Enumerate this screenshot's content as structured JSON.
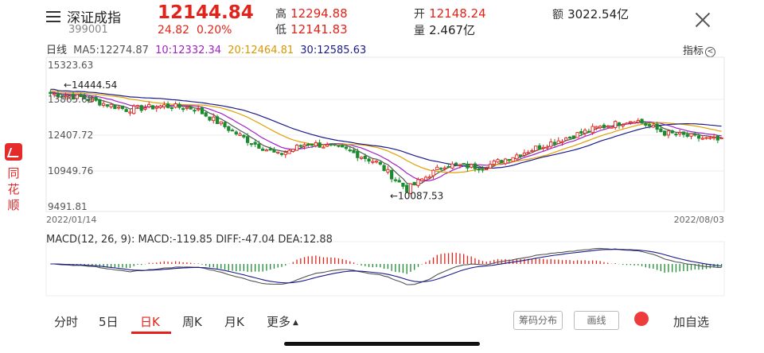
{
  "brand": {
    "logo_icon": "ths-logo-icon",
    "chars": [
      "同",
      "花",
      "顺"
    ]
  },
  "header": {
    "name": "深证成指",
    "code": "399001",
    "price": "12144.84",
    "change": "24.82",
    "change_pct": "0.20%",
    "high_label": "高",
    "high": "12294.88",
    "low_label": "低",
    "low": "12141.83",
    "open_label": "开",
    "open": "12148.24",
    "volume_label": "量",
    "volume": "2.467亿",
    "amount_label": "额",
    "amount": "3022.54亿"
  },
  "ma": {
    "period": "日线",
    "ma5": "MA5:12274.87",
    "ma10": "10:12332.34",
    "ma20": "20:12464.81",
    "ma30": "30:12585.63",
    "indicator_label": "指标"
  },
  "colors": {
    "up": "#e2231a",
    "down": "#1a8c2e",
    "ma5": "#555555",
    "ma10": "#a020c8",
    "ma20": "#e0a000",
    "ma30": "#1a1a8c"
  },
  "chart_data": {
    "type": "candlestick",
    "y_ticks": [
      "15323.63",
      "13865.68",
      "12407.72",
      "10949.76",
      "9491.81"
    ],
    "x_labels": [
      "2022/01/14",
      "2022/08/03"
    ],
    "annotations": [
      {
        "text": "←14444.54",
        "value": 14444.54
      },
      {
        "text": "←10087.53",
        "value": 10087.53
      }
    ],
    "ylim": [
      9491.81,
      15323.63
    ],
    "segments": [
      {
        "from": 14100,
        "to": 13950,
        "bars": 8
      },
      {
        "from": 13950,
        "to": 13450,
        "bars": 12
      },
      {
        "from": 13450,
        "to": 13600,
        "bars": 10
      },
      {
        "from": 13600,
        "to": 13500,
        "bars": 8
      },
      {
        "from": 13500,
        "to": 12200,
        "bars": 14
      },
      {
        "from": 12200,
        "to": 11600,
        "bars": 8
      },
      {
        "from": 11600,
        "to": 12100,
        "bars": 8
      },
      {
        "from": 12100,
        "to": 11800,
        "bars": 10
      },
      {
        "from": 11800,
        "to": 11300,
        "bars": 8
      },
      {
        "from": 11300,
        "to": 10200,
        "bars": 8
      },
      {
        "from": 10200,
        "to": 11200,
        "bars": 10
      },
      {
        "from": 11200,
        "to": 11100,
        "bars": 10
      },
      {
        "from": 11100,
        "to": 12000,
        "bars": 16
      },
      {
        "from": 12000,
        "to": 12700,
        "bars": 14
      },
      {
        "from": 12700,
        "to": 13050,
        "bars": 10
      },
      {
        "from": 13050,
        "to": 12500,
        "bars": 8
      },
      {
        "from": 12500,
        "to": 12150,
        "bars": 16
      }
    ]
  },
  "macd": {
    "label": "MACD(12, 26, 9):",
    "macd": "MACD:-119.85",
    "diff": "DIFF:-47.04",
    "dea": "DEA:12.88"
  },
  "tabs": [
    "分时",
    "5日",
    "日K",
    "周K",
    "月K",
    "更多"
  ],
  "active_tab": "日K",
  "buttons": {
    "chip1": "筹码分布",
    "chip2": "画线",
    "add": "加自选"
  }
}
